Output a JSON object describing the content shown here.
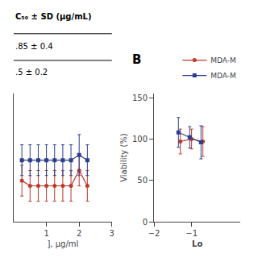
{
  "chart_data": [
    {
      "type": "line",
      "xlabel": "], μg/ml",
      "annotations": [
        "C₅₀ ± SD (μg/mL)",
        ".85 ± 0.4",
        ".5 ± 0.2"
      ],
      "xlim": [
        0,
        3
      ],
      "ylim": [
        10,
        35
      ],
      "xticks": [
        1,
        2,
        3
      ],
      "yticks": [],
      "tick_labels": "x",
      "grid": false,
      "series": [
        {
          "color": "#c0392b",
          "marker": "circle",
          "line_style": "solid",
          "x": [
            0.25,
            0.5,
            0.75,
            1.0,
            1.25,
            1.5,
            1.75,
            2.0,
            2.25
          ],
          "values": [
            18,
            17,
            17,
            17,
            17,
            17,
            17,
            20,
            17
          ],
          "yerr": [
            3,
            3,
            3,
            3,
            3,
            3,
            3,
            3,
            3
          ]
        },
        {
          "color": "#2c3e8c",
          "marker": "square",
          "line_style": "solid",
          "x": [
            0.25,
            0.5,
            0.75,
            1.0,
            1.25,
            1.5,
            1.75,
            2.0,
            2.25
          ],
          "values": [
            22,
            22,
            22,
            22,
            22,
            22,
            22,
            23,
            22
          ],
          "yerr": [
            3,
            3,
            3,
            3,
            3,
            3,
            3,
            4,
            3
          ]
        }
      ]
    },
    {
      "type": "line",
      "annotations": [
        "B"
      ],
      "xlabel": "Lo",
      "ylabel": "Viability (%)",
      "xlim": [
        -2,
        0.3
      ],
      "ylim": [
        0,
        155
      ],
      "xticks": [
        -2,
        -1
      ],
      "yticks": [
        0,
        50,
        100,
        150
      ],
      "grid": false,
      "legend": "upper right",
      "series": [
        {
          "name": "MDA-M",
          "color": "#c0392b",
          "marker": "circle",
          "line_style": "solid",
          "x": [
            -1.3,
            -1.0,
            -0.7
          ],
          "values": [
            97,
            100,
            97
          ],
          "yerr": [
            15,
            12,
            18
          ]
        },
        {
          "name": "MDA-M",
          "color": "#2c3e8c",
          "marker": "square",
          "line_style": "solid",
          "x": [
            -1.35,
            -1.05,
            -0.75
          ],
          "values": [
            108,
            102,
            96
          ],
          "yerr": [
            18,
            13,
            20
          ]
        }
      ]
    }
  ]
}
